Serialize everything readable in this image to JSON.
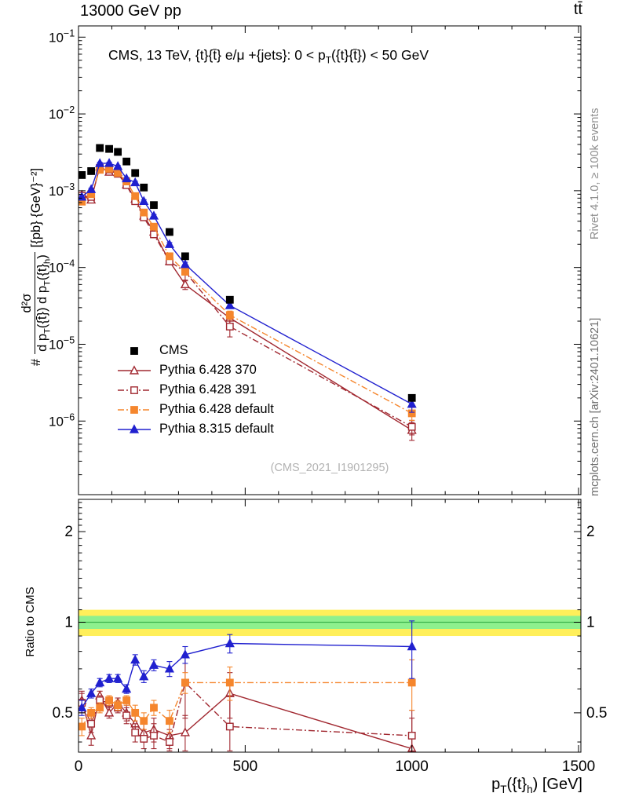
{
  "header": {
    "left": "13000 GeV pp",
    "right": "tt̄"
  },
  "title": {
    "pre": "CMS, 13 TeV, {t}{t̄} e/μ +{jets}: 0 < p",
    "sub": "T",
    "post": "({t}{t̄}) < 50 GeV"
  },
  "ylabel": {
    "prefix": "#",
    "numerator": "d²σ",
    "den": [
      "d p",
      "T",
      "({t̄}) d p",
      "T",
      "({t}",
      "h",
      ")"
    ],
    "units": "[{pb} {GeV}⁻²]"
  },
  "xlabel": {
    "parts": [
      "p",
      "T",
      "({t}",
      "h",
      ") [GeV]"
    ]
  },
  "ratio_label": "Ratio to CMS",
  "watermark": "(CMS_2021_I1901295)",
  "side_notes": {
    "top": "Rivet 4.1.0, ≥ 100k events",
    "bottom": "mcplots.cern.ch [arXiv:2401.10621]"
  },
  "chart_data": {
    "type": "line",
    "title": "CMS, 13 TeV, {t}{t̄} e/μ +{jets}: 0 < pT({t}{t̄}) < 50 GeV",
    "xlabel": "pT({t}h) [GeV]",
    "ylabel": "# d²σ / (d pT({t̄}) d pT({t}h)) [{pb} {GeV}⁻²]",
    "ratio_ylabel": "Ratio to CMS",
    "x": [
      10,
      38,
      64,
      92,
      118,
      144,
      170,
      196,
      226,
      273,
      320,
      454,
      1000
    ],
    "xlim": [
      0,
      1507
    ],
    "x_ticks": [
      0,
      500,
      1000,
      1500
    ],
    "main": {
      "ylog": true,
      "ylim": [
        1.1e-07,
        0.14
      ],
      "y_tick_exponents": [
        -1,
        -2,
        -3,
        -4,
        -5,
        -6
      ]
    },
    "ratio": {
      "ylog": true,
      "ylim": [
        0.37,
        2.56
      ],
      "ticks": [
        2,
        1,
        0.5
      ],
      "bands": {
        "yellow": [
          0.9,
          1.1
        ],
        "green": [
          0.95,
          1.05
        ],
        "yellow_color": "#ffef5a",
        "green_color": "#8ef08e",
        "center_color": "#3cb44b"
      }
    },
    "cms": {
      "name": "CMS",
      "color": "#000000",
      "marker": "square-filled",
      "rel_err": 0.05,
      "values": [
        0.0016,
        0.0018,
        0.0036,
        0.0035,
        0.0032,
        0.0024,
        0.0017,
        0.0011,
        0.00065,
        0.00029,
        0.00014,
        3.8e-05,
        2e-06
      ]
    },
    "series": [
      {
        "name": "Pythia 6.428 370",
        "color": "#a12830",
        "line": "solid",
        "marker": "triangle-open",
        "values": [
          0.00088,
          0.00076,
          0.00205,
          0.00175,
          0.00173,
          0.0012,
          0.00078,
          0.00047,
          0.00029,
          0.00012,
          6e-05,
          2.2e-05,
          7.6e-07
        ],
        "ratio": [
          0.55,
          0.42,
          0.57,
          0.5,
          0.54,
          0.5,
          0.46,
          0.43,
          0.44,
          0.42,
          0.43,
          0.58,
          0.38
        ],
        "ratio_err": [
          0.04,
          0.03,
          0.02,
          0.02,
          0.02,
          0.03,
          0.03,
          0.03,
          0.04,
          0.04,
          0.06,
          0.1,
          0.1
        ]
      },
      {
        "name": "Pythia 6.428 391",
        "color": "#a12830",
        "line": "dashdot",
        "marker": "square-open",
        "values": [
          0.00086,
          0.00083,
          0.00198,
          0.00189,
          0.00166,
          0.00118,
          0.00073,
          0.00045,
          0.00027,
          0.00012,
          8.8e-05,
          1.7e-05,
          8.4e-07
        ],
        "ratio": [
          0.54,
          0.46,
          0.55,
          0.54,
          0.52,
          0.49,
          0.43,
          0.41,
          0.42,
          0.4,
          0.63,
          0.45,
          0.42
        ],
        "ratio_err": [
          0.04,
          0.03,
          0.02,
          0.02,
          0.02,
          0.03,
          0.03,
          0.03,
          0.04,
          0.04,
          0.15,
          0.12,
          0.09
        ]
      },
      {
        "name": "Pythia 6.428 default",
        "color": "#f5862d",
        "line": "dashdot",
        "marker": "square-filled",
        "values": [
          0.00072,
          0.0009,
          0.00187,
          0.00193,
          0.0017,
          0.00132,
          0.00085,
          0.00052,
          0.00034,
          0.00014,
          8.8e-05,
          2.4e-05,
          1.26e-06
        ],
        "ratio": [
          0.45,
          0.5,
          0.52,
          0.55,
          0.53,
          0.55,
          0.5,
          0.47,
          0.52,
          0.47,
          0.63,
          0.63,
          0.63
        ],
        "ratio_err": [
          0.03,
          0.02,
          0.02,
          0.02,
          0.02,
          0.02,
          0.03,
          0.03,
          0.03,
          0.04,
          0.05,
          0.08,
          0.12
        ]
      },
      {
        "name": "Pythia 8.315 default",
        "color": "#2020cf",
        "line": "solid",
        "marker": "triangle-filled",
        "values": [
          0.00083,
          0.00104,
          0.00227,
          0.00228,
          0.00208,
          0.00144,
          0.00128,
          0.00073,
          0.00047,
          0.0002,
          0.00011,
          3.2e-05,
          1.66e-06
        ],
        "ratio": [
          0.52,
          0.58,
          0.63,
          0.65,
          0.65,
          0.6,
          0.75,
          0.66,
          0.72,
          0.7,
          0.78,
          0.85,
          0.83
        ],
        "ratio_err": [
          0.03,
          0.02,
          0.02,
          0.02,
          0.02,
          0.02,
          0.03,
          0.03,
          0.03,
          0.04,
          0.05,
          0.06,
          0.18
        ]
      }
    ]
  }
}
